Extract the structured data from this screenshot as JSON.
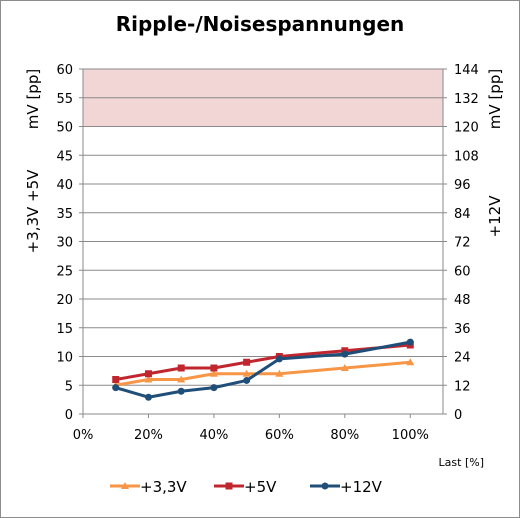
{
  "chart_data": {
    "type": "line",
    "title": "Ripple-/Noisespannungen",
    "xlabel": "Last [%]",
    "ylabel_left": [
      "+3,3V +5V",
      "mV [pp]"
    ],
    "ylabel_right": [
      "+12V",
      "mV [pp]"
    ],
    "xlim": [
      0,
      110
    ],
    "ylim_left": [
      0,
      60
    ],
    "ylim_right": [
      0,
      144
    ],
    "x_ticks": [
      "0%",
      "20%",
      "40%",
      "60%",
      "80%",
      "100%"
    ],
    "y_left_ticks": [
      "0",
      "5",
      "10",
      "15",
      "20",
      "25",
      "30",
      "35",
      "40",
      "45",
      "50",
      "55",
      "60"
    ],
    "y_right_ticks": [
      "0",
      "12",
      "24",
      "36",
      "48",
      "60",
      "72",
      "84",
      "96",
      "108",
      "120",
      "132",
      "144"
    ],
    "limit_band_left": [
      50,
      60
    ],
    "grid": true,
    "legend_position": "bottom",
    "series": [
      {
        "name": "+3,3V",
        "color": "#f79646",
        "marker": "triangle",
        "axis": "left",
        "x": [
          10,
          20,
          30,
          40,
          50,
          60,
          80,
          100
        ],
        "values": [
          5,
          6,
          6,
          7,
          7,
          7,
          8,
          9
        ]
      },
      {
        "name": "+5V",
        "color": "#c0262d",
        "marker": "square",
        "axis": "left",
        "x": [
          10,
          20,
          30,
          40,
          50,
          60,
          80,
          100
        ],
        "values": [
          6,
          7,
          8,
          8,
          9,
          10,
          11,
          12
        ]
      },
      {
        "name": "+12V",
        "color": "#1f4e79",
        "marker": "circle",
        "axis": "right",
        "x": [
          10,
          20,
          30,
          40,
          50,
          60,
          80,
          100
        ],
        "values": [
          11,
          7,
          9.5,
          11,
          14,
          23,
          25,
          30
        ]
      }
    ]
  }
}
